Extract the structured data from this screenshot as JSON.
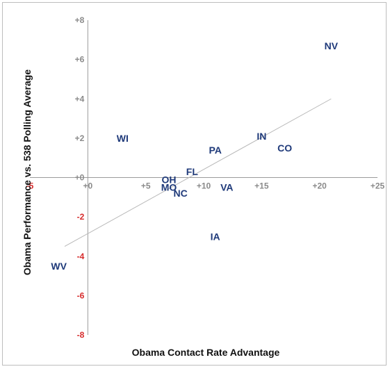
{
  "chart_data": {
    "type": "scatter",
    "title": "",
    "xlabel": "Obama Contact Rate Advantage",
    "ylabel": "Obama Performance vs. 538 Polling Average",
    "xlim": [
      -5,
      25
    ],
    "ylim": [
      -8,
      8
    ],
    "x_ticks": [
      {
        "value": -5,
        "label": "-5"
      },
      {
        "value": 0,
        "label": "+0"
      },
      {
        "value": 5,
        "label": "+5"
      },
      {
        "value": 10,
        "label": "+10"
      },
      {
        "value": 15,
        "label": "+15"
      },
      {
        "value": 20,
        "label": "+20"
      },
      {
        "value": 25,
        "label": "+25"
      }
    ],
    "y_ticks": [
      {
        "value": 8,
        "label": "+8"
      },
      {
        "value": 6,
        "label": "+6"
      },
      {
        "value": 4,
        "label": "+4"
      },
      {
        "value": 2,
        "label": "+2"
      },
      {
        "value": 0,
        "label": "+0"
      },
      {
        "value": -2,
        "label": "-2"
      },
      {
        "value": -4,
        "label": "-4"
      },
      {
        "value": -6,
        "label": "-6"
      },
      {
        "value": -8,
        "label": "-8"
      }
    ],
    "points": [
      {
        "label": "NV",
        "x": 21,
        "y": 6.7
      },
      {
        "label": "WI",
        "x": 3,
        "y": 2.0
      },
      {
        "label": "IN",
        "x": 15,
        "y": 2.1
      },
      {
        "label": "CO",
        "x": 17,
        "y": 1.5
      },
      {
        "label": "PA",
        "x": 11,
        "y": 1.4
      },
      {
        "label": "FL",
        "x": 9,
        "y": 0.3
      },
      {
        "label": "OH",
        "x": 7,
        "y": -0.1
      },
      {
        "label": "MO",
        "x": 7,
        "y": -0.5
      },
      {
        "label": "NC",
        "x": 8,
        "y": -0.8
      },
      {
        "label": "VA",
        "x": 12,
        "y": -0.5
      },
      {
        "label": "IA",
        "x": 11,
        "y": -3.0
      },
      {
        "label": "WV",
        "x": -2.5,
        "y": -4.5
      }
    ],
    "trendline": {
      "x": [
        -2,
        21
      ],
      "y": [
        -3.5,
        4.0
      ]
    },
    "grid": false,
    "legend": "none"
  }
}
